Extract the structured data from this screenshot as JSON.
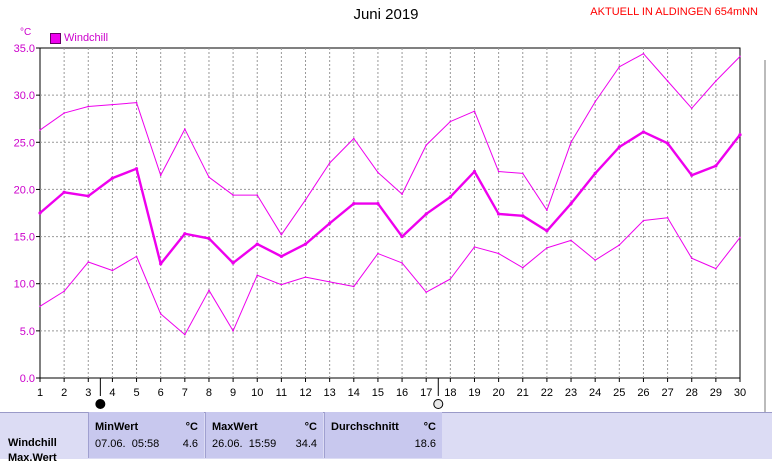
{
  "chart_data": {
    "type": "line",
    "title": "Juni 2019",
    "station": "AKTUELL IN ALDINGEN 654mNN",
    "ylabel": "°C",
    "ylim": [
      0,
      35
    ],
    "yticks": [
      "0.0",
      "5.0",
      "10.0",
      "15.0",
      "20.0",
      "25.0",
      "30.0",
      "35.0"
    ],
    "x": [
      1,
      2,
      3,
      4,
      5,
      6,
      7,
      8,
      9,
      10,
      11,
      12,
      13,
      14,
      15,
      16,
      17,
      18,
      19,
      20,
      21,
      22,
      23,
      24,
      25,
      26,
      27,
      28,
      29,
      30
    ],
    "grid": true,
    "legend": "top-left",
    "series": [
      {
        "name": "Windchill",
        "role": "avg",
        "color": "#ee00ee",
        "values": [
          17.5,
          19.7,
          19.3,
          21.2,
          22.2,
          12.1,
          15.3,
          14.8,
          12.2,
          14.2,
          12.9,
          14.2,
          16.4,
          18.5,
          18.5,
          15.0,
          17.4,
          19.2,
          21.9,
          17.4,
          17.2,
          15.6,
          18.5,
          21.7,
          24.5,
          26.1,
          24.9,
          21.5,
          22.5,
          25.8
        ]
      },
      {
        "role": "max",
        "color": "#ee00ee",
        "values": [
          26.3,
          28.1,
          28.8,
          29.0,
          29.2,
          21.5,
          26.4,
          21.3,
          19.4,
          19.4,
          15.2,
          18.9,
          22.8,
          25.4,
          21.8,
          19.5,
          24.7,
          27.2,
          28.3,
          21.9,
          21.7,
          17.8,
          25.0,
          29.3,
          33.0,
          34.4,
          31.5,
          28.6,
          31.5,
          34.1
        ]
      },
      {
        "role": "min",
        "color": "#ee00ee",
        "values": [
          7.6,
          9.2,
          12.3,
          11.4,
          12.9,
          6.8,
          4.6,
          9.3,
          5.0,
          10.9,
          9.9,
          10.7,
          10.2,
          9.7,
          13.2,
          12.2,
          9.1,
          10.5,
          13.9,
          13.2,
          11.7,
          13.8,
          14.6,
          12.5,
          14.1,
          16.7,
          17.0,
          12.7,
          11.6,
          14.9
        ]
      }
    ],
    "moon_markers": [
      {
        "x": 3.5,
        "phase": "new-moon"
      },
      {
        "x": 17.5,
        "phase": "full-moon"
      }
    ]
  },
  "stats": {
    "row_label": "Windchill",
    "row_label_2": "Max.Wert",
    "min": {
      "header": "MinWert",
      "unit": "°C",
      "date": "07.06.",
      "time": "05:58",
      "value": "4.6"
    },
    "max": {
      "header": "MaxWert",
      "unit": "°C",
      "date": "26.06.",
      "time": "15:59",
      "value": "34.4"
    },
    "avg": {
      "header": "Durchschnitt",
      "unit": "°C",
      "value": "18.6"
    }
  },
  "unit_label": "°C"
}
